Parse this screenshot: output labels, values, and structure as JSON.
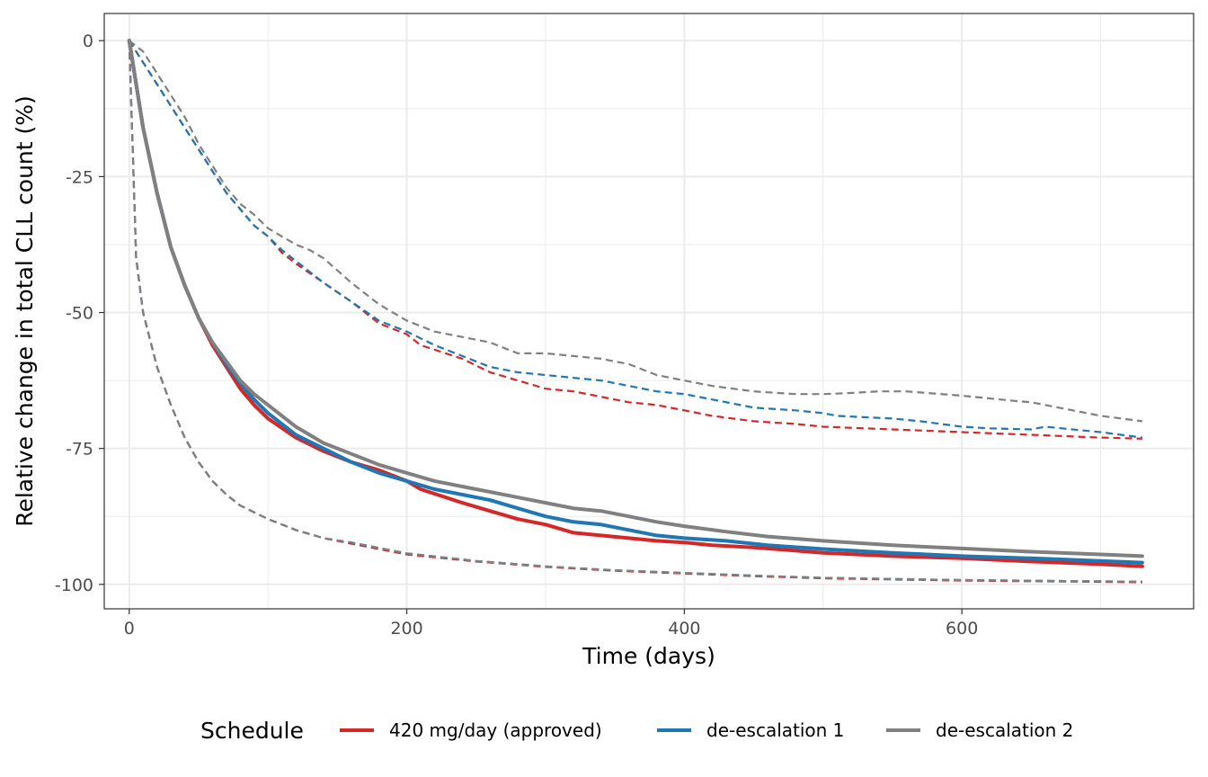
{
  "chart_data": {
    "type": "line",
    "title": "",
    "xlabel": "Time (days)",
    "ylabel": "Relative change in total CLL count (%)",
    "xlim": [
      -18,
      767
    ],
    "ylim": [
      -104.5,
      5
    ],
    "x_ticks": [
      0,
      200,
      400,
      600
    ],
    "x_tick_labels": [
      "0",
      "200",
      "400",
      "600"
    ],
    "y_ticks": [
      0,
      -25,
      -50,
      -75,
      -100
    ],
    "y_tick_labels": [
      "0",
      "-25",
      "-50",
      "-75",
      "-100"
    ],
    "grid": true,
    "legend": {
      "title": "Schedule",
      "position": "bottom",
      "entries": [
        "420 mg/day (approved)",
        "de-escalation 1",
        "de-escalation 2"
      ]
    },
    "colors": {
      "approved": "#d62728",
      "deesc1": "#1f77b4",
      "deesc2": "#808080"
    },
    "series": [
      {
        "name": "420 mg/day (approved)",
        "color": "#d62728",
        "median": [
          [
            0,
            0
          ],
          [
            10,
            -16
          ],
          [
            20,
            -28
          ],
          [
            30,
            -38
          ],
          [
            40,
            -45
          ],
          [
            50,
            -51
          ],
          [
            60,
            -56
          ],
          [
            70,
            -60
          ],
          [
            80,
            -64
          ],
          [
            90,
            -67
          ],
          [
            100,
            -69.5
          ],
          [
            120,
            -73
          ],
          [
            140,
            -75.5
          ],
          [
            160,
            -77.5
          ],
          [
            180,
            -79
          ],
          [
            200,
            -81
          ],
          [
            210,
            -82.5
          ],
          [
            240,
            -85
          ],
          [
            260,
            -86.5
          ],
          [
            280,
            -88
          ],
          [
            300,
            -89
          ],
          [
            320,
            -90.5
          ],
          [
            340,
            -91
          ],
          [
            360,
            -91.5
          ],
          [
            380,
            -92
          ],
          [
            400,
            -92.3
          ],
          [
            420,
            -92.8
          ],
          [
            450,
            -93.2
          ],
          [
            480,
            -93.8
          ],
          [
            500,
            -94.2
          ],
          [
            550,
            -94.8
          ],
          [
            600,
            -95.2
          ],
          [
            650,
            -95.8
          ],
          [
            700,
            -96.3
          ],
          [
            730,
            -96.7
          ]
        ],
        "upper": [
          [
            0,
            0
          ],
          [
            10,
            -4
          ],
          [
            20,
            -8
          ],
          [
            30,
            -12
          ],
          [
            40,
            -16
          ],
          [
            50,
            -20
          ],
          [
            60,
            -24
          ],
          [
            70,
            -28
          ],
          [
            80,
            -31
          ],
          [
            90,
            -34
          ],
          [
            100,
            -36
          ],
          [
            110,
            -39
          ],
          [
            120,
            -41
          ],
          [
            140,
            -44.5
          ],
          [
            160,
            -48
          ],
          [
            180,
            -52
          ],
          [
            200,
            -54
          ],
          [
            210,
            -56
          ],
          [
            240,
            -58.5
          ],
          [
            260,
            -61
          ],
          [
            280,
            -62.5
          ],
          [
            300,
            -64
          ],
          [
            320,
            -64.5
          ],
          [
            340,
            -65.5
          ],
          [
            360,
            -66.5
          ],
          [
            380,
            -67
          ],
          [
            400,
            -68
          ],
          [
            420,
            -69
          ],
          [
            450,
            -70
          ],
          [
            480,
            -70.5
          ],
          [
            500,
            -71
          ],
          [
            550,
            -71.5
          ],
          [
            600,
            -72
          ],
          [
            650,
            -72.5
          ],
          [
            700,
            -73
          ],
          [
            730,
            -73.2
          ]
        ],
        "lower": [
          [
            0,
            0
          ],
          [
            5,
            -40
          ],
          [
            10,
            -50
          ],
          [
            20,
            -60
          ],
          [
            30,
            -67
          ],
          [
            40,
            -73
          ],
          [
            50,
            -77.5
          ],
          [
            60,
            -81
          ],
          [
            70,
            -83.5
          ],
          [
            80,
            -85.5
          ],
          [
            100,
            -88
          ],
          [
            120,
            -90
          ],
          [
            140,
            -91.5
          ],
          [
            160,
            -92.5
          ],
          [
            180,
            -93.5
          ],
          [
            200,
            -94.5
          ],
          [
            250,
            -95.8
          ],
          [
            300,
            -96.8
          ],
          [
            350,
            -97.5
          ],
          [
            400,
            -98
          ],
          [
            450,
            -98.5
          ],
          [
            500,
            -98.9
          ],
          [
            600,
            -99.3
          ],
          [
            730,
            -99.6
          ]
        ]
      },
      {
        "name": "de-escalation 1",
        "color": "#1f77b4",
        "median": [
          [
            0,
            0
          ],
          [
            10,
            -16
          ],
          [
            20,
            -28
          ],
          [
            30,
            -38
          ],
          [
            40,
            -45
          ],
          [
            50,
            -51
          ],
          [
            60,
            -55.5
          ],
          [
            70,
            -59.5
          ],
          [
            80,
            -63
          ],
          [
            90,
            -66
          ],
          [
            100,
            -68.5
          ],
          [
            120,
            -72.5
          ],
          [
            140,
            -75
          ],
          [
            160,
            -77.5
          ],
          [
            180,
            -79.5
          ],
          [
            200,
            -81
          ],
          [
            220,
            -82.5
          ],
          [
            240,
            -83.5
          ],
          [
            260,
            -84.5
          ],
          [
            280,
            -86
          ],
          [
            300,
            -87.5
          ],
          [
            320,
            -88.5
          ],
          [
            340,
            -89
          ],
          [
            360,
            -90
          ],
          [
            380,
            -91
          ],
          [
            400,
            -91.5
          ],
          [
            430,
            -92
          ],
          [
            460,
            -92.8
          ],
          [
            500,
            -93.5
          ],
          [
            550,
            -94.2
          ],
          [
            600,
            -94.8
          ],
          [
            650,
            -95.2
          ],
          [
            700,
            -95.7
          ],
          [
            730,
            -96
          ]
        ],
        "upper": [
          [
            0,
            0
          ],
          [
            10,
            -4
          ],
          [
            20,
            -8
          ],
          [
            30,
            -12
          ],
          [
            40,
            -16
          ],
          [
            50,
            -20
          ],
          [
            60,
            -24
          ],
          [
            70,
            -28
          ],
          [
            80,
            -31
          ],
          [
            90,
            -34
          ],
          [
            100,
            -36
          ],
          [
            110,
            -38.5
          ],
          [
            120,
            -40.5
          ],
          [
            140,
            -44.5
          ],
          [
            160,
            -48
          ],
          [
            180,
            -51.5
          ],
          [
            200,
            -53.5
          ],
          [
            220,
            -56
          ],
          [
            240,
            -58
          ],
          [
            260,
            -60
          ],
          [
            280,
            -61
          ],
          [
            300,
            -61.5
          ],
          [
            320,
            -62
          ],
          [
            340,
            -62.5
          ],
          [
            360,
            -63.5
          ],
          [
            380,
            -64.5
          ],
          [
            400,
            -65
          ],
          [
            420,
            -66
          ],
          [
            450,
            -67.5
          ],
          [
            480,
            -68
          ],
          [
            500,
            -68.5
          ],
          [
            510,
            -69
          ],
          [
            550,
            -69.5
          ],
          [
            570,
            -70
          ],
          [
            600,
            -71
          ],
          [
            620,
            -71.3
          ],
          [
            650,
            -71.5
          ],
          [
            660,
            -71
          ],
          [
            700,
            -72
          ],
          [
            730,
            -73
          ]
        ],
        "lower": [
          [
            0,
            0
          ],
          [
            5,
            -40
          ],
          [
            10,
            -50
          ],
          [
            20,
            -60
          ],
          [
            30,
            -67
          ],
          [
            40,
            -73
          ],
          [
            50,
            -77.5
          ],
          [
            60,
            -81
          ],
          [
            70,
            -83.5
          ],
          [
            80,
            -85.5
          ],
          [
            100,
            -88
          ],
          [
            120,
            -90
          ],
          [
            140,
            -91.5
          ],
          [
            160,
            -92.3
          ],
          [
            180,
            -93.3
          ],
          [
            200,
            -94.3
          ],
          [
            250,
            -95.7
          ],
          [
            300,
            -96.7
          ],
          [
            350,
            -97.4
          ],
          [
            400,
            -97.9
          ],
          [
            450,
            -98.4
          ],
          [
            500,
            -98.8
          ],
          [
            600,
            -99.2
          ],
          [
            730,
            -99.5
          ]
        ]
      },
      {
        "name": "de-escalation 2",
        "color": "#808080",
        "median": [
          [
            0,
            0
          ],
          [
            10,
            -16
          ],
          [
            20,
            -28
          ],
          [
            30,
            -38
          ],
          [
            40,
            -45
          ],
          [
            50,
            -51
          ],
          [
            60,
            -55.5
          ],
          [
            70,
            -59
          ],
          [
            80,
            -62.5
          ],
          [
            90,
            -65
          ],
          [
            100,
            -67
          ],
          [
            120,
            -71
          ],
          [
            140,
            -74
          ],
          [
            160,
            -76
          ],
          [
            180,
            -78
          ],
          [
            200,
            -79.5
          ],
          [
            220,
            -81
          ],
          [
            240,
            -82
          ],
          [
            260,
            -83
          ],
          [
            280,
            -84
          ],
          [
            300,
            -85
          ],
          [
            320,
            -86
          ],
          [
            340,
            -86.5
          ],
          [
            360,
            -87.5
          ],
          [
            380,
            -88.5
          ],
          [
            400,
            -89.3
          ],
          [
            430,
            -90.3
          ],
          [
            460,
            -91.2
          ],
          [
            500,
            -92
          ],
          [
            550,
            -92.8
          ],
          [
            600,
            -93.4
          ],
          [
            650,
            -94
          ],
          [
            700,
            -94.5
          ],
          [
            730,
            -94.8
          ]
        ],
        "upper": [
          [
            0,
            0
          ],
          [
            10,
            -2
          ],
          [
            20,
            -6
          ],
          [
            30,
            -10
          ],
          [
            40,
            -14
          ],
          [
            50,
            -19
          ],
          [
            60,
            -23
          ],
          [
            70,
            -27
          ],
          [
            80,
            -30
          ],
          [
            90,
            -32
          ],
          [
            100,
            -34.5
          ],
          [
            110,
            -36
          ],
          [
            120,
            -37.5
          ],
          [
            130,
            -38.5
          ],
          [
            140,
            -40
          ],
          [
            160,
            -44.5
          ],
          [
            180,
            -48.5
          ],
          [
            200,
            -51.5
          ],
          [
            220,
            -53.5
          ],
          [
            240,
            -54.5
          ],
          [
            260,
            -55.5
          ],
          [
            280,
            -57.5
          ],
          [
            300,
            -57.5
          ],
          [
            320,
            -58
          ],
          [
            340,
            -58.5
          ],
          [
            360,
            -59.5
          ],
          [
            380,
            -61.5
          ],
          [
            400,
            -62.5
          ],
          [
            420,
            -63.5
          ],
          [
            450,
            -64.5
          ],
          [
            480,
            -65
          ],
          [
            500,
            -65
          ],
          [
            520,
            -64.8
          ],
          [
            540,
            -64.5
          ],
          [
            560,
            -64.5
          ],
          [
            600,
            -65.3
          ],
          [
            640,
            -66.3
          ],
          [
            650,
            -66.5
          ],
          [
            700,
            -69
          ],
          [
            730,
            -70
          ]
        ],
        "lower": [
          [
            0,
            0
          ],
          [
            5,
            -40
          ],
          [
            10,
            -50
          ],
          [
            20,
            -60
          ],
          [
            30,
            -67
          ],
          [
            40,
            -73
          ],
          [
            50,
            -77.5
          ],
          [
            60,
            -81
          ],
          [
            70,
            -83.5
          ],
          [
            80,
            -85.5
          ],
          [
            100,
            -88
          ],
          [
            120,
            -90
          ],
          [
            140,
            -91.5
          ],
          [
            160,
            -92.3
          ],
          [
            180,
            -93.3
          ],
          [
            200,
            -94.3
          ],
          [
            250,
            -95.7
          ],
          [
            300,
            -96.7
          ],
          [
            350,
            -97.4
          ],
          [
            400,
            -97.9
          ],
          [
            450,
            -98.4
          ],
          [
            500,
            -98.8
          ],
          [
            600,
            -99.2
          ],
          [
            730,
            -99.5
          ]
        ]
      }
    ]
  }
}
